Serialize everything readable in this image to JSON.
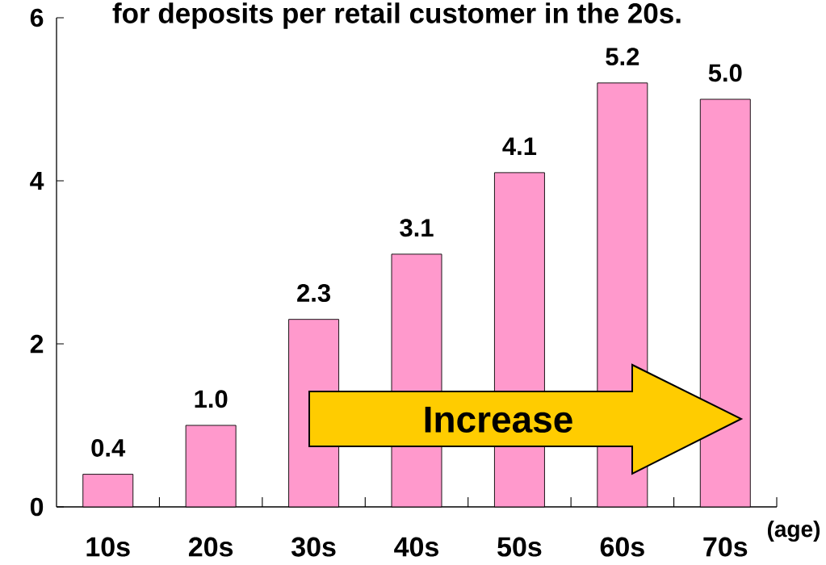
{
  "chart_data": {
    "type": "bar",
    "title": "for deposits per retail customer in the 20s.",
    "categories": [
      "10s",
      "20s",
      "30s",
      "40s",
      "50s",
      "60s",
      "70s"
    ],
    "values": [
      0.4,
      1.0,
      2.3,
      3.1,
      4.1,
      5.2,
      5.0
    ],
    "value_labels": [
      "0.4",
      "1.0",
      "2.3",
      "3.1",
      "4.1",
      "5.2",
      "5.0"
    ],
    "color": "#ff99cc",
    "xlabel": "(age)",
    "ylim": [
      0,
      6
    ],
    "yticks": [
      0,
      2,
      4,
      6
    ],
    "annotations": [
      "Increase"
    ]
  }
}
